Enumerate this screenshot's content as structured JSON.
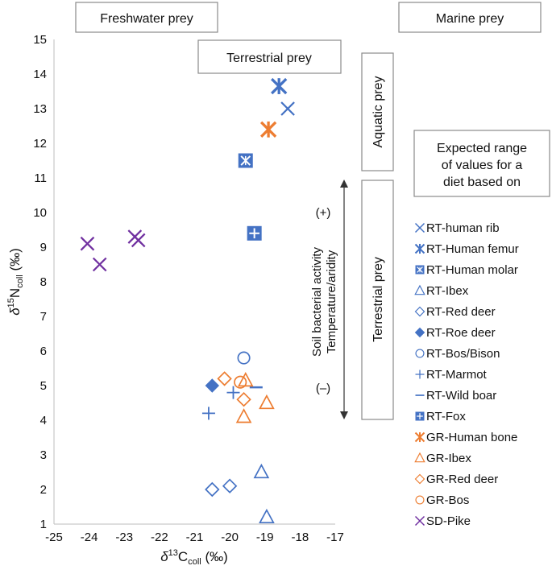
{
  "chart_data": {
    "type": "scatter",
    "xlabel": {
      "prefix": "δ",
      "sup": "13",
      "main": "C",
      "sub": "coll",
      "unit": " (‰)"
    },
    "ylabel": {
      "prefix": "δ",
      "sup": "15",
      "main": "N",
      "sub": "coll",
      "unit": " (‰)"
    },
    "xlim": [
      -25,
      -17
    ],
    "ylim": [
      1,
      15
    ],
    "xticks": [
      -25,
      -24,
      -23,
      -22,
      -21,
      -20,
      -19,
      -18,
      -17
    ],
    "yticks": [
      1,
      2,
      3,
      4,
      5,
      6,
      7,
      8,
      9,
      10,
      11,
      12,
      13,
      14,
      15
    ],
    "grid": false,
    "boxes": {
      "freshwater": "Freshwater prey",
      "marine": "Marine prey",
      "terrestrial_top": "Terrestrial prey",
      "aquatic": "Aquatic prey",
      "terrestrial_side": "Terrestrial prey",
      "expected": [
        "Expected range",
        "of values for a",
        "diet based on"
      ]
    },
    "arrow_annotation": {
      "plus": "(+)",
      "minus": "(–)",
      "line1": "Soil bacterial activity",
      "line2": "Temperature/aridity"
    },
    "colors": {
      "blue": "#4472c4",
      "orange": "#ed7d31",
      "purple": "#7030a0"
    },
    "series": [
      {
        "name": "RT-human rib",
        "marker": "x",
        "color": "#4472c4",
        "points": [
          [
            -18.35,
            13.0
          ]
        ]
      },
      {
        "name": "RT-Human femur",
        "marker": "asterisk",
        "color": "#4472c4",
        "points": [
          [
            -18.6,
            13.65
          ]
        ]
      },
      {
        "name": "RT-Human molar",
        "marker": "square-x",
        "color": "#4472c4",
        "points": [
          [
            -19.55,
            11.5
          ]
        ]
      },
      {
        "name": "RT-Ibex",
        "marker": "triangle",
        "color": "#4472c4",
        "points": [
          [
            -19.1,
            2.5
          ],
          [
            -18.95,
            1.2
          ]
        ]
      },
      {
        "name": "RT-Red deer",
        "marker": "diamond",
        "color": "#4472c4",
        "points": [
          [
            -20.5,
            2.0
          ],
          [
            -20.0,
            2.1
          ]
        ]
      },
      {
        "name": "RT-Roe deer",
        "marker": "diamond-filled",
        "color": "#4472c4",
        "points": [
          [
            -20.5,
            5.0
          ]
        ]
      },
      {
        "name": "RT-Bos/Bison",
        "marker": "circle",
        "color": "#4472c4",
        "points": [
          [
            -19.6,
            5.8
          ]
        ]
      },
      {
        "name": "RT-Marmot",
        "marker": "plus",
        "color": "#4472c4",
        "points": [
          [
            -20.6,
            4.2
          ],
          [
            -19.9,
            4.8
          ]
        ]
      },
      {
        "name": "RT-Wild boar",
        "marker": "dash",
        "color": "#4472c4",
        "points": [
          [
            -19.25,
            4.95
          ]
        ]
      },
      {
        "name": "RT-Fox",
        "marker": "square-plus",
        "color": "#4472c4",
        "points": [
          [
            -19.3,
            9.4
          ]
        ]
      },
      {
        "name": "GR-Human bone",
        "marker": "asterisk",
        "color": "#ed7d31",
        "points": [
          [
            -18.9,
            12.4
          ]
        ]
      },
      {
        "name": "GR-Ibex",
        "marker": "triangle",
        "color": "#ed7d31",
        "points": [
          [
            -19.55,
            5.15
          ],
          [
            -19.6,
            4.1
          ],
          [
            -18.95,
            4.5
          ]
        ]
      },
      {
        "name": "GR-Red deer",
        "marker": "diamond",
        "color": "#ed7d31",
        "points": [
          [
            -20.15,
            5.2
          ],
          [
            -19.6,
            4.6
          ]
        ]
      },
      {
        "name": "GR-Bos",
        "marker": "circle",
        "color": "#ed7d31",
        "points": [
          [
            -19.7,
            5.1
          ]
        ]
      },
      {
        "name": "SD-Pike",
        "marker": "x",
        "color": "#7030a0",
        "points": [
          [
            -24.05,
            9.1
          ],
          [
            -23.7,
            8.5
          ],
          [
            -22.7,
            9.3
          ],
          [
            -22.6,
            9.2
          ]
        ]
      }
    ]
  }
}
